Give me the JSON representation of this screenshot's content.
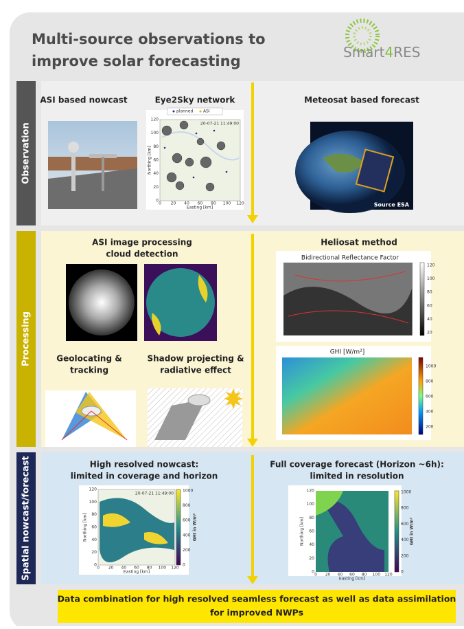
{
  "header": {
    "title_lines": [
      "Multi-source observations to",
      "improve solar forecasting"
    ],
    "logo": [
      "Smart",
      "4",
      "RES"
    ]
  },
  "observation": {
    "label": "Observation",
    "asi_title": "ASI based nowcast",
    "network_title": "Eye2Sky network",
    "network_legend": [
      "planned",
      "ASI"
    ],
    "network_time": "20-07-21 11:49:00",
    "network_ylabel": "Northing [km]",
    "network_xlabel": "Easting [km]",
    "network_xticks": [
      0,
      20,
      40,
      60,
      80,
      100,
      120
    ],
    "network_yticks": [
      0,
      20,
      40,
      60,
      80,
      100,
      120
    ],
    "meteosat_title": "Meteosat based forecast",
    "meteosat_credit": "Source ESA"
  },
  "processing": {
    "label": "Processing",
    "asi_title_lines": [
      "ASI image processing",
      "cloud detection"
    ],
    "heliosat_title": "Heliosat method",
    "brf_title": "Bidirectional Reflectance Factor",
    "brf_ticks": [
      120,
      100,
      80,
      60,
      40,
      20
    ],
    "geo_title_lines": [
      "Geolocating &",
      "tracking"
    ],
    "shadow_title_lines": [
      "Shadow projecting &",
      "radiative effect"
    ],
    "ghi_title": "GHI [W/m²]",
    "ghi_ticks": [
      1000,
      800,
      600,
      400,
      200
    ]
  },
  "spatial": {
    "label": "Spatial nowcast/forecast",
    "nowcast_title_lines": [
      "High resolved nowcast:",
      "limited in coverage and horizon"
    ],
    "forecast_title_lines": [
      "Full coverage forecast (Horizon ~6h):",
      "limited in resolution"
    ],
    "nowcast_time": "20-07-21 11:49:00",
    "cbar_label": "GHI in W/m²",
    "cbar_ticks": [
      0,
      200,
      400,
      600,
      800,
      1000
    ],
    "ylabel": "Northing [km]",
    "xlabel": "Easting [km]",
    "xticks": [
      0,
      20,
      40,
      60,
      80,
      100,
      120
    ],
    "yticks": [
      0,
      20,
      40,
      60,
      80,
      100,
      120
    ]
  },
  "footer": {
    "lines": [
      "Data combination for high resolved seamless forecast as well as data assimilation",
      "for improved NWPs"
    ]
  }
}
